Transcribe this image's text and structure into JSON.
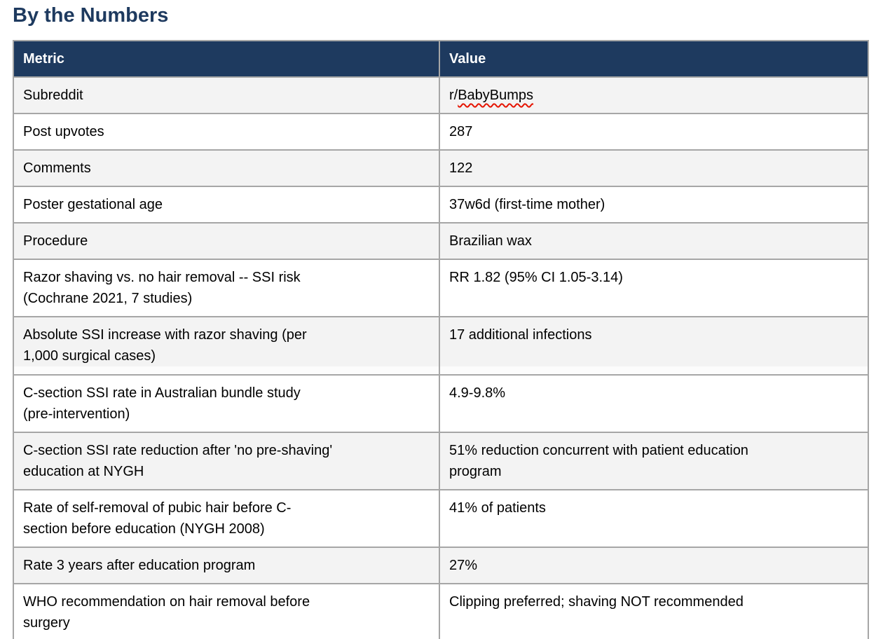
{
  "page": {
    "title": "By the Numbers"
  },
  "colors": {
    "header_bg": "#1e3a5f",
    "header_text": "#ffffff",
    "title_text": "#1e3a5f",
    "border": "#a6a6a6",
    "row_alt_bg": "#f3f3f3",
    "row_bg": "#ffffff",
    "body_text": "#000000",
    "spellcheck": "#e51400"
  },
  "table": {
    "columns": [
      "Metric",
      "Value"
    ],
    "rows": [
      {
        "metric": "Subreddit",
        "value_prefix": "r/",
        "value_flagged": "BabyBumps"
      },
      {
        "metric": "Post upvotes",
        "value": "287"
      },
      {
        "metric": "Comments",
        "value": "122"
      },
      {
        "metric": "Poster gestational age",
        "value": "37w6d (first-time mother)"
      },
      {
        "metric": "Procedure",
        "value": "Brazilian wax"
      },
      {
        "metric": "Razor shaving vs. no hair removal -- SSI risk\n(Cochrane 2021, 7 studies)",
        "value": "RR 1.82 (95% CI 1.05-3.14)"
      },
      {
        "metric": "Absolute SSI increase with razor shaving (per\n1,000 surgical cases)",
        "value": "17 additional infections"
      },
      {
        "metric": "C-section SSI rate in Australian bundle study\n(pre-intervention)",
        "value": "4.9-9.8%"
      },
      {
        "metric": "C-section SSI rate reduction after 'no pre-shaving'\neducation at NYGH",
        "value": "51% reduction concurrent with patient education\nprogram"
      },
      {
        "metric": "Rate of self-removal of pubic hair before C-\nsection before education (NYGH 2008)",
        "value": "41% of patients"
      },
      {
        "metric": "Rate 3 years after education program",
        "value": "27%"
      },
      {
        "metric": "WHO recommendation on hair removal before\nsurgery",
        "value": "Clipping preferred; shaving NOT recommended"
      }
    ]
  }
}
